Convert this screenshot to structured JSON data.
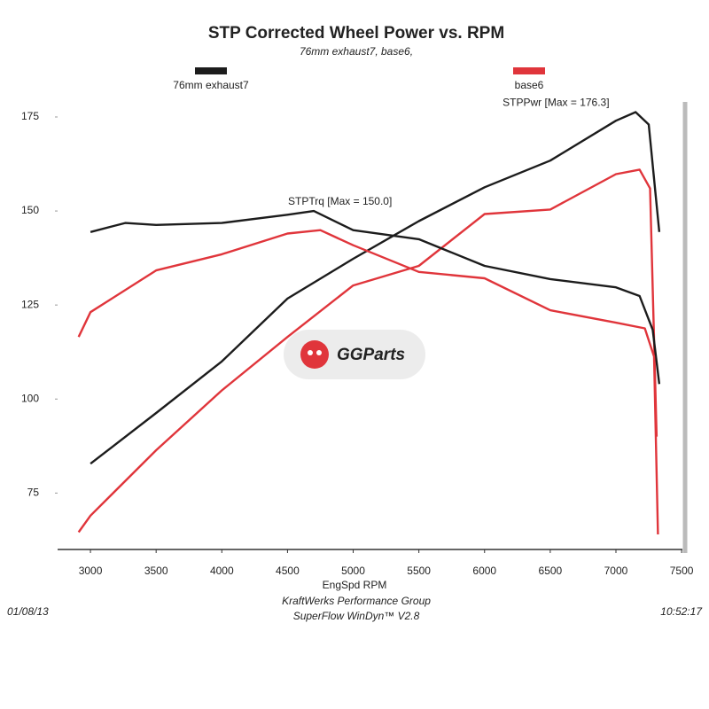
{
  "chart_data": {
    "type": "line",
    "title": "STP Corrected Wheel Power vs. RPM",
    "subtitle": "76mm exhaust7, base6,",
    "xlabel": "EngSpd  RPM",
    "footer": [
      "KraftWerks Performance Group",
      "SuperFlow WinDyn™ V2.8"
    ],
    "date": "01/08/13",
    "time": "10:52:17",
    "watermark": "GGParts",
    "annotations": [
      {
        "text": "STPPwr [Max = 176.3]",
        "x": 6950,
        "y": 176.3
      },
      {
        "text": "STPTrq [Max = 150.0]",
        "x": 4900,
        "y": 150.0
      }
    ],
    "xlim": [
      2750,
      7560
    ],
    "ylim": [
      60,
      179
    ],
    "xticks": [
      3000,
      3500,
      4000,
      4500,
      5000,
      5500,
      6000,
      6500,
      7000,
      7500
    ],
    "yticks": [
      75,
      100,
      125,
      150,
      175
    ],
    "grid": false,
    "series": [
      {
        "name": "76mm exhaust7",
        "color": "#1c1c1c",
        "x": [
          3000,
          3500,
          4000,
          4500,
          5000,
          5500,
          6000,
          6500,
          7000,
          7150,
          7250,
          7330
        ],
        "values": [
          82.8,
          96.3,
          110,
          126.7,
          137.3,
          147.3,
          156.3,
          163.4,
          174,
          176.3,
          173,
          144.4
        ]
      },
      {
        "name": "base6",
        "color": "#e0353b",
        "x": [
          2910,
          3000,
          3500,
          4000,
          4500,
          5000,
          5500,
          6000,
          6500,
          7000,
          7180,
          7260,
          7310
        ],
        "values": [
          64.6,
          69,
          86.4,
          102.3,
          116.5,
          130.2,
          135.4,
          149.2,
          150.4,
          159.8,
          161,
          156,
          90
        ]
      },
      {
        "name": "76mm exhaust7",
        "color": "#1c1c1c",
        "x": [
          3000,
          3265,
          3500,
          4000,
          4500,
          4700,
          5000,
          5500,
          6000,
          6500,
          7000,
          7180,
          7280,
          7330
        ],
        "values": [
          144.4,
          146.8,
          146.3,
          146.8,
          149,
          150,
          144.9,
          142.5,
          135.4,
          131.9,
          129.7,
          127.4,
          118.4,
          104
        ]
      },
      {
        "name": "base6",
        "color": "#e0353b",
        "x": [
          2910,
          3000,
          3500,
          4000,
          4500,
          4750,
          5000,
          5500,
          6000,
          6500,
          7000,
          7220,
          7290,
          7320
        ],
        "values": [
          116.5,
          123.1,
          134.2,
          138.5,
          144,
          144.9,
          140.9,
          133.8,
          132.1,
          123.6,
          120.3,
          118.8,
          111.3,
          64
        ]
      }
    ]
  }
}
